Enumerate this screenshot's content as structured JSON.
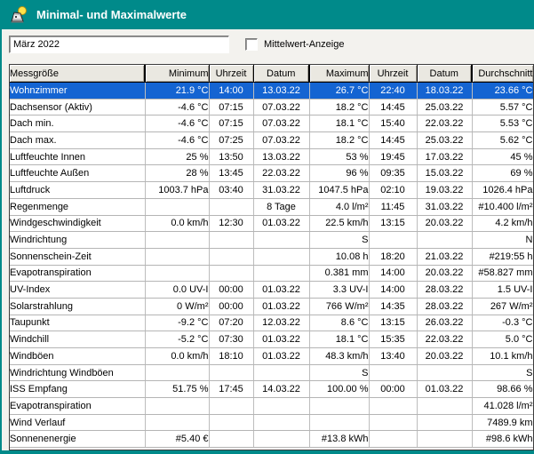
{
  "window": {
    "title": "Minimal- und Maximalwerte",
    "icon": "weather-station-icon"
  },
  "toolbar": {
    "period_value": "März 2022",
    "mittelwert_label": "Mittelwert-Anzeige",
    "mittelwert_checked": false
  },
  "table": {
    "columns": [
      "Messgröße",
      "Minimum",
      "Uhrzeit",
      "Datum",
      "Maximum",
      "Uhrzeit",
      "Datum",
      "Durchschnitt"
    ],
    "selected_row_index": 0,
    "rows": [
      [
        "Wohnzimmer",
        "21.9 °C",
        "14:00",
        "13.03.22",
        "26.7 °C",
        "22:40",
        "18.03.22",
        "23.66 °C"
      ],
      [
        "Dachsensor (Aktiv)",
        "-4.6 °C",
        "07:15",
        "07.03.22",
        "18.2 °C",
        "14:45",
        "25.03.22",
        "5.57 °C"
      ],
      [
        "Dach min.",
        "-4.6 °C",
        "07:15",
        "07.03.22",
        "18.1 °C",
        "15:40",
        "22.03.22",
        "5.53 °C"
      ],
      [
        "Dach max.",
        "-4.6 °C",
        "07:25",
        "07.03.22",
        "18.2 °C",
        "14:45",
        "25.03.22",
        "5.62 °C"
      ],
      [
        "Luftfeuchte Innen",
        "25 %",
        "13:50",
        "13.03.22",
        "53 %",
        "19:45",
        "17.03.22",
        "45 %"
      ],
      [
        "Luftfeuchte Außen",
        "28 %",
        "13:45",
        "22.03.22",
        "96 %",
        "09:35",
        "15.03.22",
        "69 %"
      ],
      [
        "Luftdruck",
        "1003.7 hPa",
        "03:40",
        "31.03.22",
        "1047.5 hPa",
        "02:10",
        "19.03.22",
        "1026.4 hPa"
      ],
      [
        "Regenmenge",
        "",
        "",
        "8 Tage",
        "4.0 l/m²",
        "11:45",
        "31.03.22",
        "#10.400 l/m²"
      ],
      [
        "Windgeschwindigkeit",
        "0.0 km/h",
        "12:30",
        "01.03.22",
        "22.5 km/h",
        "13:15",
        "20.03.22",
        "4.2 km/h"
      ],
      [
        "Windrichtung",
        "",
        "",
        "",
        "S",
        "",
        "",
        "N"
      ],
      [
        "Sonnenschein-Zeit",
        "",
        "",
        "",
        "10.08 h",
        "18:20",
        "21.03.22",
        "#219:55 h"
      ],
      [
        "Evapotranspiration",
        "",
        "",
        "",
        "0.381 mm",
        "14:00",
        "20.03.22",
        "#58.827 mm"
      ],
      [
        "UV-Index",
        "0.0 UV-I",
        "00:00",
        "01.03.22",
        "3.3 UV-I",
        "14:00",
        "28.03.22",
        "1.5 UV-I"
      ],
      [
        "Solarstrahlung",
        "0 W/m²",
        "00:00",
        "01.03.22",
        "766 W/m²",
        "14:35",
        "28.03.22",
        "267 W/m²"
      ],
      [
        "Taupunkt",
        "-9.2 °C",
        "07:20",
        "12.03.22",
        "8.6 °C",
        "13:15",
        "26.03.22",
        "-0.3 °C"
      ],
      [
        "Windchill",
        "-5.2 °C",
        "07:30",
        "01.03.22",
        "18.1 °C",
        "15:35",
        "22.03.22",
        "5.0 °C"
      ],
      [
        "Windböen",
        "0.0 km/h",
        "18:10",
        "01.03.22",
        "48.3 km/h",
        "13:40",
        "20.03.22",
        "10.1 km/h"
      ],
      [
        "Windrichtung Windböen",
        "",
        "",
        "",
        "S",
        "",
        "",
        "S"
      ],
      [
        "ISS Empfang",
        "51.75 %",
        "17:45",
        "14.03.22",
        "100.00 %",
        "00:00",
        "01.03.22",
        "98.66 %"
      ],
      [
        "Evapotranspiration",
        "",
        "",
        "",
        "",
        "",
        "",
        "41.028 l/m²"
      ],
      [
        "Wind Verlauf",
        "",
        "",
        "",
        "",
        "",
        "",
        "7489.9 km"
      ],
      [
        "Sonnenenergie",
        "#5.40 €",
        "",
        "",
        "#13.8 kWh",
        "",
        "",
        "#98.6 kWh"
      ]
    ]
  },
  "colors": {
    "titlebar": "#008a8a",
    "selection": "#1464d2",
    "header_bg": "#eae8e1"
  }
}
